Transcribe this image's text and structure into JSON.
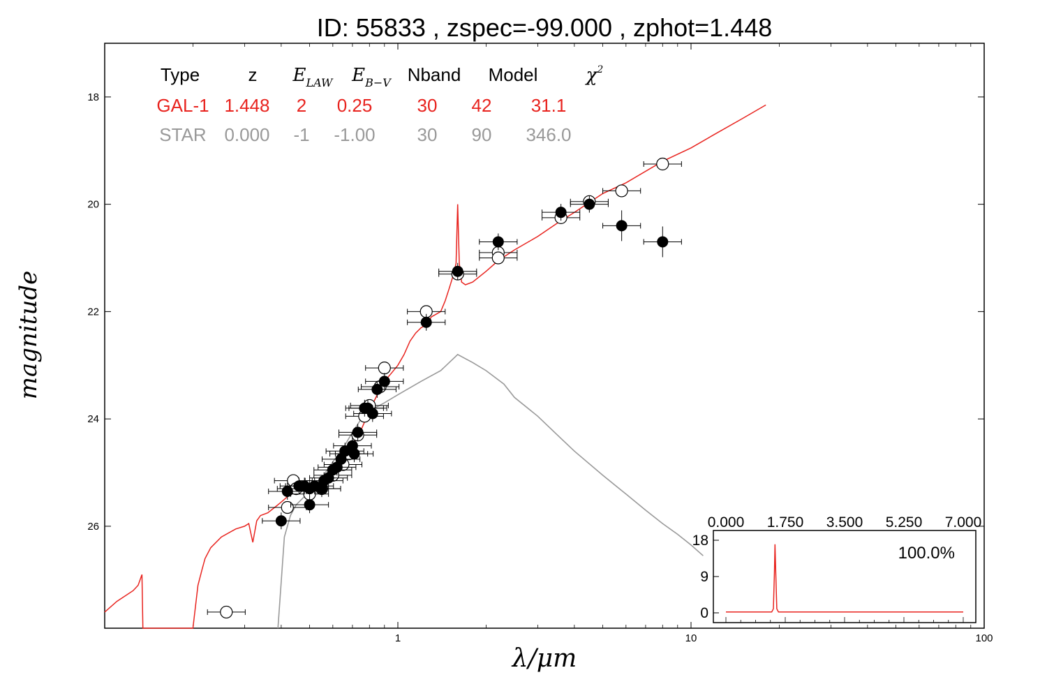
{
  "chart_data": [
    {
      "type": "scatter",
      "title": "ID:  55833 , zspec=-99.000 , zphot=1.448",
      "xlabel": "λ/μm",
      "ylabel": "magnitude",
      "xscale": "log",
      "xlim": [
        0.1,
        100
      ],
      "ylim": [
        27.9,
        17.0
      ],
      "x_tick_labels": [
        "1",
        "10",
        "100"
      ],
      "y_tick_labels": [
        "18",
        "20",
        "22",
        "24",
        "26"
      ],
      "grid": false,
      "info_table": {
        "headers": [
          "Type",
          "z",
          "E_LAW",
          "E_B−V",
          "Nband",
          "Model",
          "χ²"
        ],
        "rows": [
          {
            "cells": [
              "GAL-1",
              "1.448",
              "2",
              "0.25",
              "30",
              "42",
              "31.1"
            ],
            "color": "#e8231e"
          },
          {
            "cells": [
              "STAR",
              "0.000",
              "-1",
              "-1.00",
              "30",
              "90",
              "346.0"
            ],
            "color": "#999999"
          }
        ]
      },
      "series": [
        {
          "name": "GAL-1",
          "kind": "line",
          "color": "#e8231e",
          "points": [
            [
              0.1,
              27.6
            ],
            [
              0.11,
              27.4
            ],
            [
              0.125,
              27.2
            ],
            [
              0.13,
              27.1
            ],
            [
              0.134,
              26.9
            ],
            [
              0.135,
              28.0
            ],
            [
              0.2,
              28.0
            ],
            [
              0.208,
              27.1
            ],
            [
              0.215,
              26.8
            ],
            [
              0.22,
              26.6
            ],
            [
              0.23,
              26.4
            ],
            [
              0.25,
              26.2
            ],
            [
              0.28,
              26.05
            ],
            [
              0.3,
              26.0
            ],
            [
              0.31,
              25.95
            ],
            [
              0.32,
              26.3
            ],
            [
              0.33,
              25.9
            ],
            [
              0.34,
              25.8
            ],
            [
              0.36,
              25.75
            ],
            [
              0.38,
              25.65
            ],
            [
              0.4,
              25.55
            ],
            [
              0.42,
              25.45
            ],
            [
              0.45,
              25.35
            ],
            [
              0.48,
              25.3
            ],
            [
              0.5,
              25.25
            ],
            [
              0.52,
              25.3
            ],
            [
              0.55,
              25.2
            ],
            [
              0.6,
              25.0
            ],
            [
              0.63,
              24.9
            ],
            [
              0.65,
              24.8
            ],
            [
              0.7,
              24.5
            ],
            [
              0.75,
              24.2
            ],
            [
              0.8,
              23.85
            ],
            [
              0.85,
              23.55
            ],
            [
              0.9,
              23.3
            ],
            [
              0.95,
              23.15
            ],
            [
              1.0,
              23.0
            ],
            [
              1.05,
              22.8
            ],
            [
              1.1,
              22.55
            ],
            [
              1.15,
              22.4
            ],
            [
              1.2,
              22.3
            ],
            [
              1.25,
              22.25
            ],
            [
              1.3,
              22.1
            ],
            [
              1.35,
              22.05
            ],
            [
              1.4,
              22.0
            ],
            [
              1.45,
              21.8
            ],
            [
              1.5,
              21.55
            ],
            [
              1.55,
              21.3
            ],
            [
              1.58,
              21.1
            ],
            [
              1.6,
              20.0
            ],
            [
              1.62,
              21.1
            ],
            [
              1.65,
              21.45
            ],
            [
              1.7,
              21.5
            ],
            [
              1.8,
              21.45
            ],
            [
              2.0,
              21.25
            ],
            [
              2.2,
              21.05
            ],
            [
              2.5,
              20.85
            ],
            [
              3.0,
              20.6
            ],
            [
              3.5,
              20.35
            ],
            [
              4.0,
              20.15
            ],
            [
              5.0,
              19.8
            ],
            [
              6.0,
              19.6
            ],
            [
              8.0,
              19.2
            ],
            [
              10.0,
              18.95
            ],
            [
              12.0,
              18.7
            ],
            [
              15.0,
              18.4
            ],
            [
              18.0,
              18.15
            ]
          ]
        },
        {
          "name": "STAR",
          "kind": "line",
          "color": "#999999",
          "points": [
            [
              0.39,
              28.0
            ],
            [
              0.41,
              26.2
            ],
            [
              0.43,
              25.8
            ],
            [
              0.45,
              25.6
            ],
            [
              0.5,
              25.35
            ],
            [
              0.55,
              25.1
            ],
            [
              0.6,
              24.8
            ],
            [
              0.65,
              24.55
            ],
            [
              0.7,
              24.25
            ],
            [
              0.75,
              24.0
            ],
            [
              0.8,
              23.85
            ],
            [
              0.9,
              23.7
            ],
            [
              1.0,
              23.55
            ],
            [
              1.2,
              23.3
            ],
            [
              1.4,
              23.1
            ],
            [
              1.6,
              22.8
            ],
            [
              1.8,
              22.95
            ],
            [
              2.0,
              23.1
            ],
            [
              2.3,
              23.35
            ],
            [
              2.5,
              23.6
            ],
            [
              3.0,
              23.95
            ],
            [
              3.5,
              24.3
            ],
            [
              4.0,
              24.6
            ],
            [
              5.0,
              25.05
            ],
            [
              6.0,
              25.4
            ],
            [
              7.0,
              25.7
            ],
            [
              8.0,
              25.95
            ],
            [
              9.0,
              26.15
            ],
            [
              10.0,
              26.35
            ],
            [
              11.0,
              26.55
            ]
          ]
        },
        {
          "name": "model-magnitudes",
          "kind": "open-markers",
          "points": [
            [
              0.26,
              27.6
            ],
            [
              0.42,
              25.65
            ],
            [
              0.44,
              25.15
            ],
            [
              0.45,
              25.3
            ],
            [
              0.5,
              25.4
            ],
            [
              0.55,
              25.3
            ],
            [
              0.6,
              25.05
            ],
            [
              0.65,
              24.85
            ],
            [
              0.68,
              24.65
            ],
            [
              0.73,
              24.3
            ],
            [
              0.77,
              23.95
            ],
            [
              0.8,
              23.75
            ],
            [
              0.87,
              23.4
            ],
            [
              0.9,
              23.05
            ],
            [
              1.25,
              22.0
            ],
            [
              1.6,
              21.3
            ],
            [
              2.2,
              20.9
            ],
            [
              2.2,
              21.0
            ],
            [
              3.6,
              20.25
            ],
            [
              4.5,
              19.95
            ],
            [
              5.8,
              19.75
            ],
            [
              8.0,
              19.25
            ]
          ]
        },
        {
          "name": "observed-magnitudes",
          "kind": "filled-markers",
          "points": [
            [
              0.4,
              25.9
            ],
            [
              0.42,
              25.35
            ],
            [
              0.46,
              25.25
            ],
            [
              0.48,
              25.25
            ],
            [
              0.5,
              25.3
            ],
            [
              0.5,
              25.6
            ],
            [
              0.52,
              25.25
            ],
            [
              0.55,
              25.3
            ],
            [
              0.56,
              25.15
            ],
            [
              0.58,
              25.1
            ],
            [
              0.6,
              24.95
            ],
            [
              0.62,
              24.9
            ],
            [
              0.64,
              24.75
            ],
            [
              0.66,
              24.6
            ],
            [
              0.7,
              24.5
            ],
            [
              0.71,
              24.65
            ],
            [
              0.73,
              24.25
            ],
            [
              0.77,
              23.8
            ],
            [
              0.79,
              23.8
            ],
            [
              0.82,
              23.9
            ],
            [
              0.85,
              23.45
            ],
            [
              0.9,
              23.3
            ],
            [
              1.25,
              22.2
            ],
            [
              1.6,
              21.25
            ],
            [
              2.2,
              20.7
            ],
            [
              3.6,
              20.15
            ],
            [
              4.5,
              20.0
            ],
            [
              5.8,
              20.4
            ],
            [
              8.0,
              20.7
            ]
          ]
        }
      ]
    },
    {
      "type": "line",
      "title": "",
      "xlim": [
        0.0,
        7.0
      ],
      "ylim": [
        0,
        18
      ],
      "x_tick_labels": [
        "0.000",
        "1.750",
        "3.500",
        "5.250",
        "7.000"
      ],
      "y_tick_labels": [
        "0",
        "9",
        "18"
      ],
      "annotation": "100.0%",
      "series": [
        {
          "color": "#e8231e",
          "points": [
            [
              0.0,
              0.2
            ],
            [
              1.35,
              0.2
            ],
            [
              1.4,
              1.0
            ],
            [
              1.43,
              10.0
            ],
            [
              1.448,
              17.0
            ],
            [
              1.47,
              10.0
            ],
            [
              1.5,
              1.0
            ],
            [
              1.55,
              0.2
            ],
            [
              7.0,
              0.2
            ]
          ]
        }
      ]
    }
  ]
}
